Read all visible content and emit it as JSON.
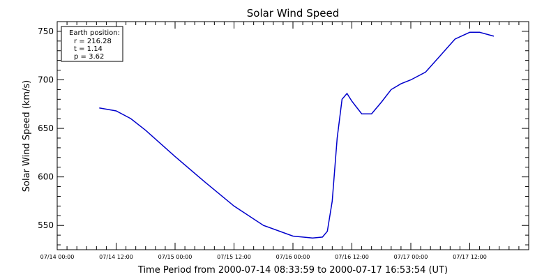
{
  "chart_data": {
    "type": "line",
    "title": "Solar Wind Speed",
    "xlabel": "Time Period from 2000-07-14 08:33:59 to 2000-07-17 16:53:54 (UT)",
    "ylabel": "Solar Wind Speed (km/s)",
    "xlim": [
      "2000-07-14 00:00",
      "2000-07-18 00:00"
    ],
    "ylim": [
      525,
      760
    ],
    "x_ticks": [
      "07/14 00:00",
      "07/14 12:00",
      "07/15 00:00",
      "07/15 12:00",
      "07/16 00:00",
      "07/16 12:00",
      "07/17 00:00",
      "07/17 12:00"
    ],
    "y_ticks": [
      550,
      600,
      650,
      700,
      750
    ],
    "legend": {
      "placement": "top-left",
      "title": "Earth position:",
      "lines": [
        "r = 216.28",
        "t = 1.14",
        "p = 3.62"
      ]
    },
    "colors": {
      "line": "#0000cc"
    },
    "series": [
      {
        "x": [
          "2000-07-14 08:34",
          "2000-07-14 12:00",
          "2000-07-14 15:00",
          "2000-07-14 18:00",
          "2000-07-15 00:00",
          "2000-07-15 06:00",
          "2000-07-15 12:00",
          "2000-07-15 18:00",
          "2000-07-16 00:00",
          "2000-07-16 04:00",
          "2000-07-16 06:00",
          "2000-07-16 07:00",
          "2000-07-16 08:00",
          "2000-07-16 09:00",
          "2000-07-16 10:00",
          "2000-07-16 11:00",
          "2000-07-16 12:00",
          "2000-07-16 14:00",
          "2000-07-16 16:00",
          "2000-07-16 18:00",
          "2000-07-16 20:00",
          "2000-07-16 22:00",
          "2000-07-17 00:00",
          "2000-07-17 03:00",
          "2000-07-17 06:00",
          "2000-07-17 09:00",
          "2000-07-17 12:00",
          "2000-07-17 14:00",
          "2000-07-17 16:54"
        ],
        "y": [
          671,
          668,
          660,
          648,
          621,
          595,
          570,
          550,
          539,
          537,
          538,
          544,
          575,
          640,
          680,
          686,
          678,
          665,
          665,
          677,
          690,
          696,
          700,
          708,
          725,
          742,
          749,
          749,
          745
        ]
      }
    ]
  }
}
